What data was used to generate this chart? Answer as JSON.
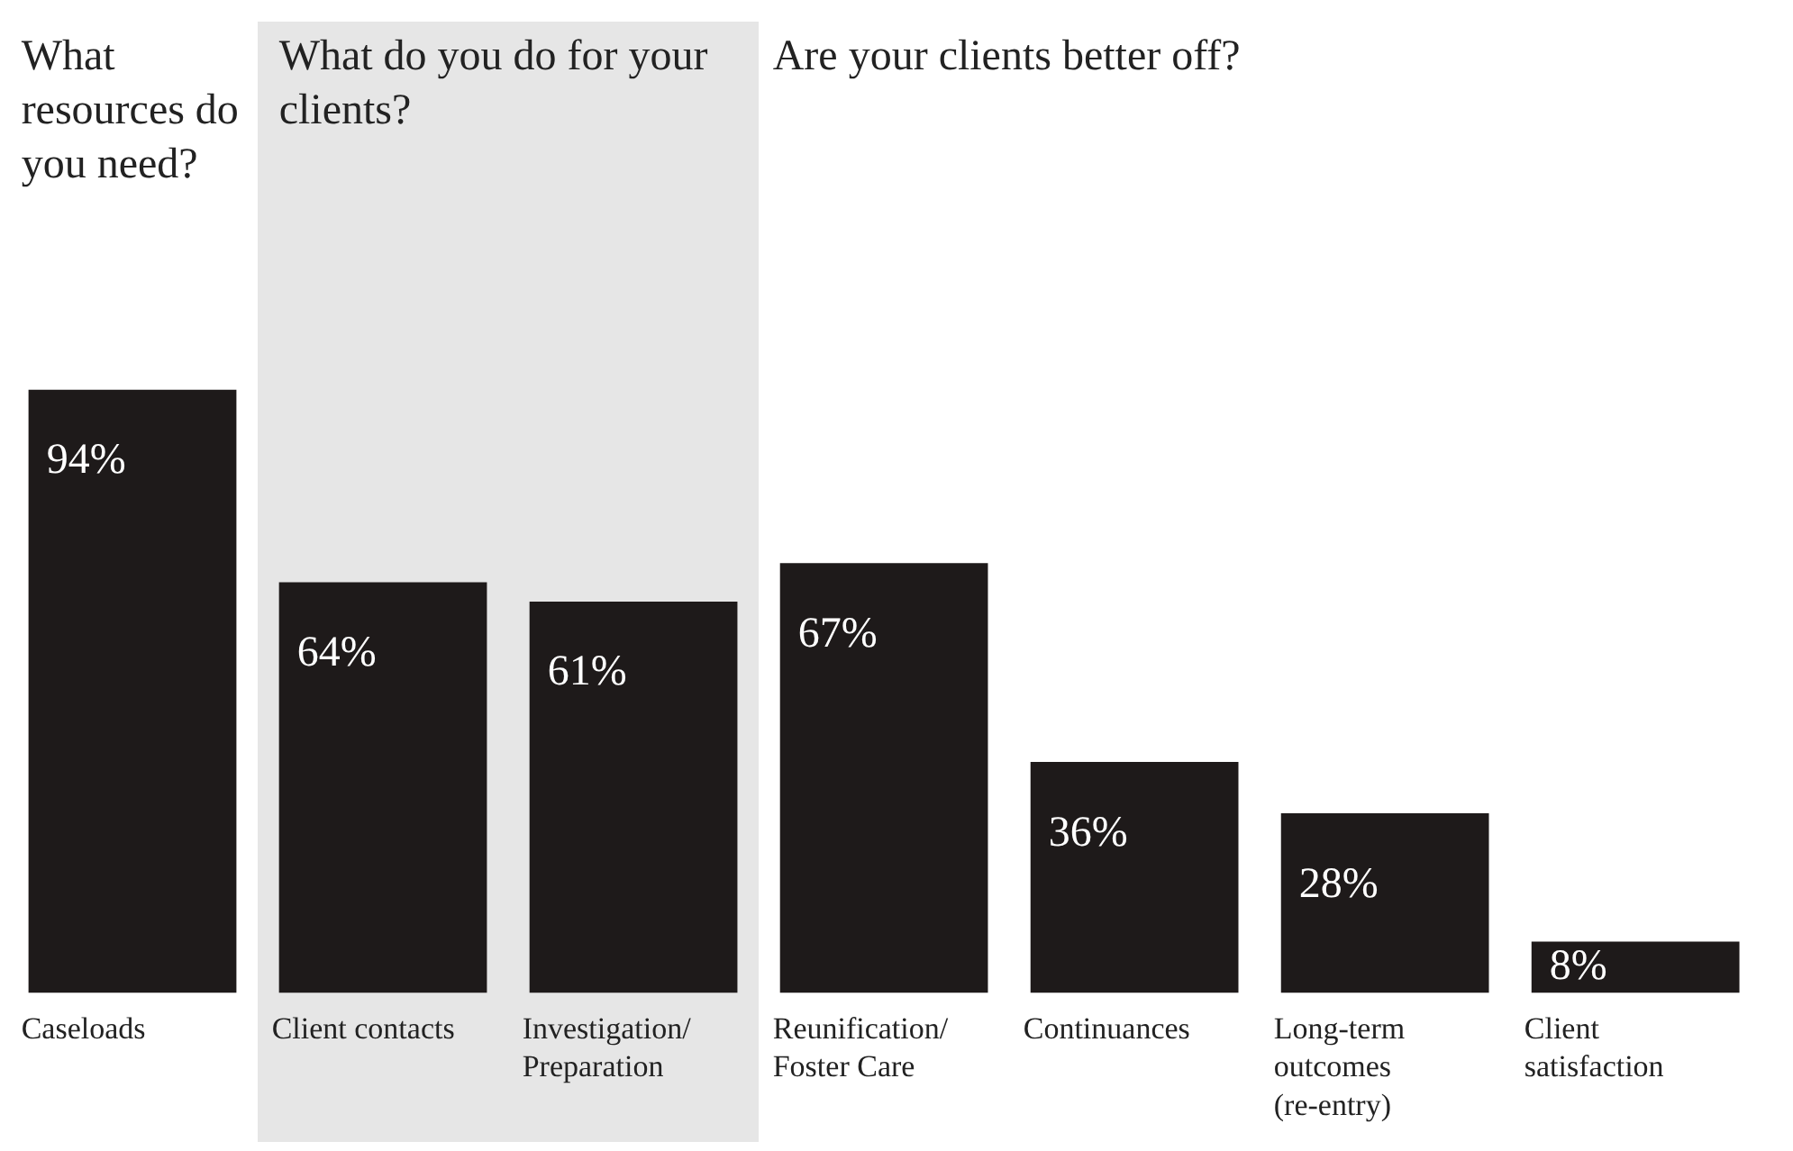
{
  "chart_data": {
    "type": "bar",
    "categories": [
      "Caseloads",
      "Client contacts",
      "Investigation/\nPreparation",
      "Reunification/\nFoster Care",
      "Continuances",
      "Long-term\noutcomes\n(re-entry)",
      "Client\nsatisfaction"
    ],
    "values": [
      94,
      64,
      61,
      67,
      36,
      28,
      8
    ],
    "value_labels": [
      "94%",
      "64%",
      "61%",
      "67%",
      "36%",
      "28%",
      "8%"
    ],
    "color": "#1e1a1a",
    "annotations": [
      "What resources do you need?",
      "What do you do for your clients?",
      "Are your clients better off?"
    ],
    "legend": false,
    "grid": false
  }
}
